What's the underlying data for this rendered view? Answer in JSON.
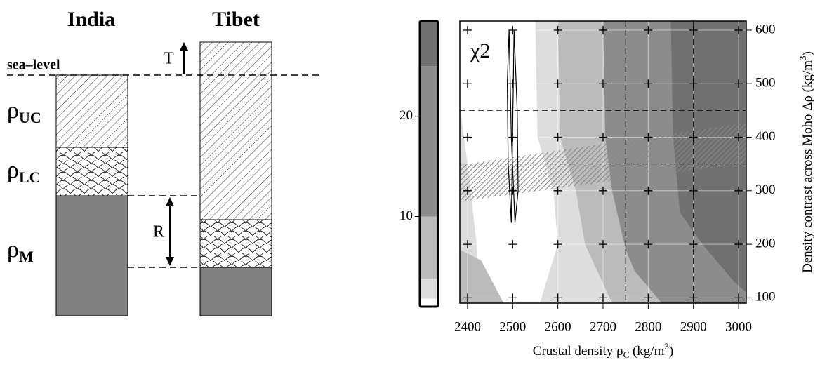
{
  "diagram": {
    "india": "India",
    "tibet": "Tibet",
    "sea_level": "sea–level",
    "t": "T",
    "r": "R",
    "rho_uc": [
      "ρ",
      "UC"
    ],
    "rho_lc": [
      "ρ",
      "LC"
    ],
    "rho_m": [
      "ρ",
      "M"
    ]
  },
  "chart_data": {
    "type": "contour",
    "label": "χ2",
    "xlabel": [
      "Crustal density ρ",
      "C",
      " (kg/m",
      "3",
      ")"
    ],
    "ylabel": [
      "Density contrast across Moho Δρ (kg/m",
      "3",
      ")"
    ],
    "xlim": [
      2383,
      3017
    ],
    "xticks": [
      2400,
      2500,
      2600,
      2700,
      2800,
      2900,
      3000
    ],
    "ylim": [
      90,
      617
    ],
    "yticks": [
      100,
      200,
      300,
      400,
      500,
      600
    ],
    "vlines": [
      2750,
      2900
    ],
    "hlines": [
      350,
      450
    ],
    "colorbar": {
      "lim": [
        1,
        29.5
      ],
      "ticks": [
        10,
        20
      ],
      "levels": [
        1,
        1.8,
        3.8,
        10,
        25,
        29.5
      ],
      "colors": [
        "#ffffff",
        "#dddddd",
        "#bbbbbb",
        "#8c8c8c",
        "#707070"
      ]
    },
    "regions": [
      {
        "color": "#dddddd",
        "x": [
          2550,
          3017,
          3017,
          2560,
          2600,
          2590,
          2555
        ],
        "y": [
          617,
          617,
          90,
          90,
          200,
          300,
          400
        ]
      },
      {
        "color": "#dddddd",
        "x": [
          2383,
          2430,
          2420,
          2400,
          2383
        ],
        "y": [
          90,
          90,
          200,
          350,
          460
        ]
      },
      {
        "color": "#bbbbbb",
        "x": [
          2383,
          2480,
          2430,
          2383
        ],
        "y": [
          90,
          90,
          170,
          190
        ]
      },
      {
        "color": "#bbbbbb",
        "x": [
          2600,
          3017,
          3017,
          2720,
          2660,
          2640,
          2605
        ],
        "y": [
          617,
          617,
          90,
          90,
          200,
          300,
          400
        ]
      },
      {
        "color": "#8c8c8c",
        "x": [
          2700,
          3017,
          3017,
          2830,
          2770,
          2750,
          2720,
          2705
        ],
        "y": [
          617,
          617,
          90,
          90,
          150,
          190,
          300,
          400
        ]
      },
      {
        "color": "#707070",
        "x": [
          2850,
          3017,
          3017,
          2990,
          2920,
          2870,
          2855
        ],
        "y": [
          617,
          617,
          110,
          130,
          200,
          260,
          400
        ]
      }
    ],
    "band": {
      "x": [
        2383,
        3017
      ],
      "lower": [
        280,
        352
      ],
      "upper": [
        348,
        427
      ]
    },
    "contour_line": {
      "x": [
        2492,
        2497,
        2505,
        2512,
        2510,
        2503,
        2497,
        2490,
        2488
      ],
      "y": [
        600,
        400,
        240,
        300,
        450,
        600,
        240,
        350,
        500
      ]
    }
  }
}
